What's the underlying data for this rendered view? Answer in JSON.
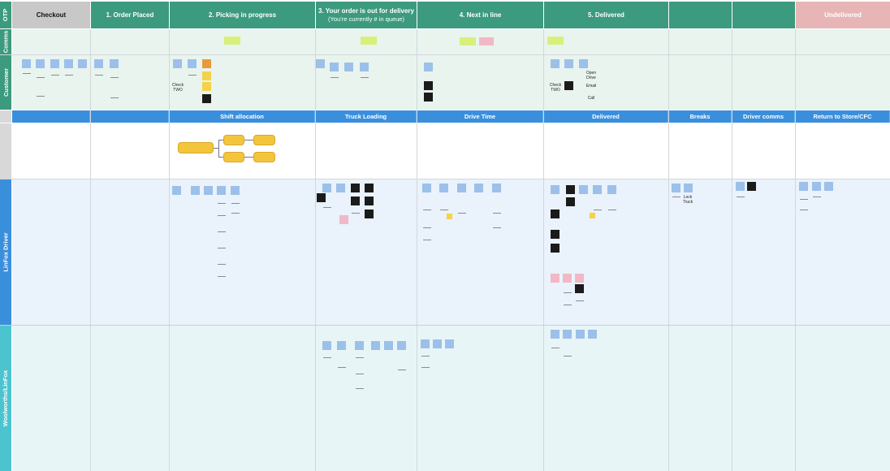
{
  "stages": [
    {
      "label": "Checkout",
      "style": "gray"
    },
    {
      "label": "1. Order Placed",
      "style": "green"
    },
    {
      "label": "2. Picking in progress",
      "style": "green"
    },
    {
      "label": "3. Your order is out for delivery",
      "sub": "(You’re currently # in queue)",
      "style": "green"
    },
    {
      "label": "4. Next in line",
      "style": "green"
    },
    {
      "label": "5. Delivered",
      "style": "green"
    },
    {
      "label": "",
      "style": "green"
    },
    {
      "label": "",
      "style": "green"
    },
    {
      "label": "Undelivered",
      "style": "red"
    }
  ],
  "lanes": {
    "otp": "OTP",
    "comms": "Comms",
    "customer": "Customer",
    "driver": "LinFox Driver",
    "woolworths": "Woolworths/LinFox"
  },
  "band": {
    "shift": "Shift allocation",
    "truck": "Truck Loading",
    "drive": "Drive Time",
    "delivered": "Delivered",
    "breaks": "Breaks",
    "driver_comms": "Driver comms",
    "return": "Return to Store/CFC"
  },
  "customer_notes": {
    "check_1": "Check TWO",
    "check_2": "Check TWO",
    "open_drive": "Open Drive",
    "email": "Email",
    "call": "Call"
  },
  "driver_notes": {
    "lock_truck": "Lock Truck"
  },
  "colors": {
    "stage_green": "#3c9a7e",
    "band_blue": "#3a8fdd",
    "undelivered_red": "#e7b5b5",
    "driver_lane": "#3a8fdd",
    "woolworths_lane": "#4cc4cf"
  }
}
